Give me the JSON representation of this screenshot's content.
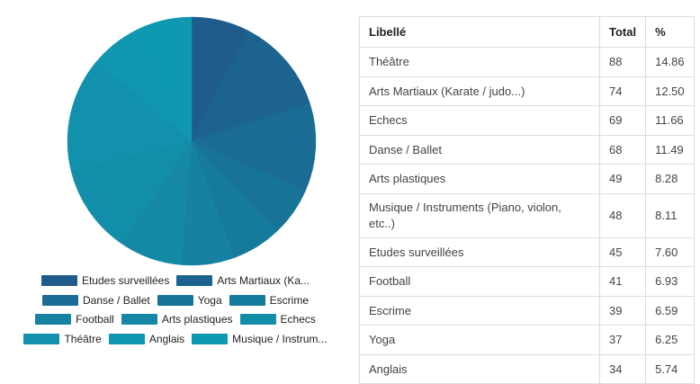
{
  "chart_data": {
    "type": "pie",
    "title": "",
    "slices": [
      {
        "label": "Etudes surveillées",
        "value": 45,
        "color": "#1f5c8b"
      },
      {
        "label": "Arts Martiaux (Karate / judo...)",
        "value": 74,
        "color": "#1c648f"
      },
      {
        "label": "Danse / Ballet",
        "value": 68,
        "color": "#1a6c94"
      },
      {
        "label": "Yoga",
        "value": 37,
        "color": "#187398"
      },
      {
        "label": "Escrime",
        "value": 39,
        "color": "#167a9d"
      },
      {
        "label": "Football",
        "value": 41,
        "color": "#1681a1"
      },
      {
        "label": "Arts plastiques",
        "value": 49,
        "color": "#1488a5"
      },
      {
        "label": "Echecs",
        "value": 69,
        "color": "#138ea8"
      },
      {
        "label": "Théâtre",
        "value": 88,
        "color": "#1191ac"
      },
      {
        "label": "Anglais",
        "value": 34,
        "color": "#1096ae"
      },
      {
        "label": "Musique / Instruments (Piano, violon, etc..)",
        "value": 48,
        "color": "#0f99b0"
      }
    ],
    "legend_labels": [
      [
        "Etudes surveillées",
        "Arts Martiaux (Ka..."
      ],
      [
        "Danse / Ballet",
        "Yoga",
        "Escrime"
      ],
      [
        "Football",
        "Arts plastiques",
        "Echecs"
      ],
      [
        "Théâtre",
        "Anglais",
        "Musique / Instrum..."
      ]
    ],
    "legend_position": "bottom"
  },
  "table": {
    "headers": [
      "Libellé",
      "Total",
      "%"
    ],
    "rows": [
      [
        "Théâtre",
        "88",
        "14.86"
      ],
      [
        "Arts Martiaux (Karate / judo...)",
        "74",
        "12.50"
      ],
      [
        "Echecs",
        "69",
        "11.66"
      ],
      [
        "Danse / Ballet",
        "68",
        "11.49"
      ],
      [
        "Arts plastiques",
        "49",
        "8.28"
      ],
      [
        "Musique / Instruments (Piano, violon, etc..)",
        "48",
        "8.11"
      ],
      [
        "Etudes surveillées",
        "45",
        "7.60"
      ],
      [
        "Football",
        "41",
        "6.93"
      ],
      [
        "Escrime",
        "39",
        "6.59"
      ],
      [
        "Yoga",
        "37",
        "6.25"
      ],
      [
        "Anglais",
        "34",
        "5.74"
      ]
    ]
  }
}
